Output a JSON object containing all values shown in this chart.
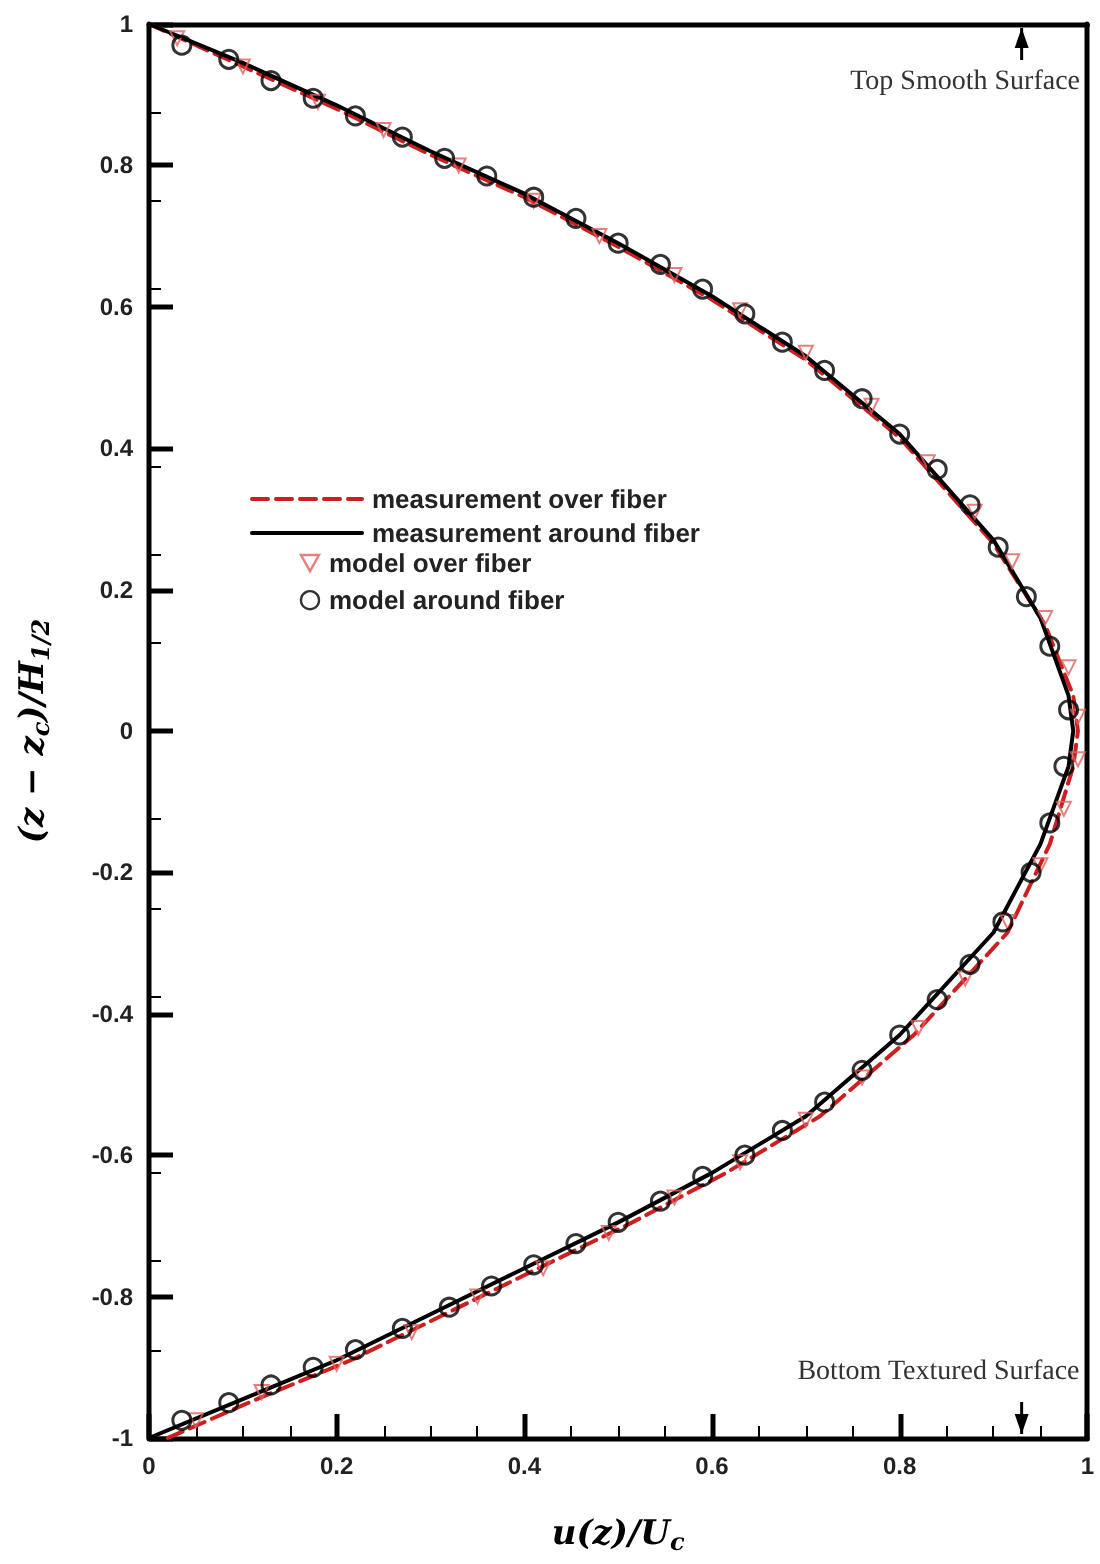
{
  "chart_data": {
    "type": "line",
    "xlabel": "u(z)/U$_{c}$",
    "ylabel": "(z − z$_{c}$)/H$_{1/2}$",
    "xlim": [
      0,
      1
    ],
    "xticks": [
      0,
      0.2,
      0.4,
      0.6,
      0.8,
      1
    ],
    "ylim": [
      -1,
      1
    ],
    "yticks": [
      -1,
      -0.8,
      -0.6,
      -0.4,
      -0.2,
      0,
      0.2,
      0.4,
      0.6,
      0.8,
      1
    ],
    "legend": "left",
    "annotations": [
      "Top Smooth Surface",
      "Bottom Textured Surface"
    ],
    "series": [
      {
        "name": "measurement over fiber",
        "type": "line",
        "line_style": "dashed",
        "color": "#cc2020",
        "x": [
          0,
          0.1,
          0.2,
          0.3,
          0.4,
          0.5,
          0.6,
          0.7,
          0.8,
          0.9,
          0.955,
          0.985,
          0.99,
          0.985,
          0.96,
          0.915,
          0.815,
          0.715,
          0.615,
          0.515,
          0.415,
          0.315,
          0.215,
          0.115,
          0.02
        ],
        "values": [
          1,
          0.94,
          0.88,
          0.815,
          0.755,
          0.685,
          0.61,
          0.525,
          0.415,
          0.265,
          0.15,
          0.05,
          0,
          -0.05,
          -0.16,
          -0.285,
          -0.43,
          -0.545,
          -0.625,
          -0.695,
          -0.76,
          -0.825,
          -0.89,
          -0.945,
          -1
        ]
      },
      {
        "name": "measurement around fiber",
        "type": "line",
        "line_style": "solid",
        "color": "#000000",
        "x": [
          0,
          0.1,
          0.2,
          0.3,
          0.4,
          0.5,
          0.6,
          0.7,
          0.8,
          0.9,
          0.95,
          0.98,
          0.985,
          0.98,
          0.95,
          0.9,
          0.8,
          0.7,
          0.6,
          0.5,
          0.4,
          0.3,
          0.2,
          0.1,
          0
        ],
        "values": [
          1,
          0.945,
          0.885,
          0.82,
          0.76,
          0.69,
          0.615,
          0.53,
          0.42,
          0.27,
          0.16,
          0.05,
          0,
          -0.05,
          -0.16,
          -0.285,
          -0.43,
          -0.545,
          -0.625,
          -0.695,
          -0.76,
          -0.825,
          -0.89,
          -0.945,
          -1
        ]
      },
      {
        "name": "model over fiber",
        "type": "scatter",
        "marker": "triangle",
        "color": "#e06060",
        "x": [
          0.03,
          0.1,
          0.18,
          0.25,
          0.33,
          0.41,
          0.48,
          0.56,
          0.63,
          0.7,
          0.77,
          0.83,
          0.88,
          0.92,
          0.955,
          0.98,
          0.99,
          0.99,
          0.975,
          0.95,
          0.915,
          0.87,
          0.82,
          0.76,
          0.7,
          0.63,
          0.56,
          0.49,
          0.42,
          0.35,
          0.28,
          0.2,
          0.12,
          0.05
        ],
        "values": [
          0.98,
          0.94,
          0.89,
          0.85,
          0.8,
          0.75,
          0.7,
          0.645,
          0.595,
          0.535,
          0.46,
          0.38,
          0.31,
          0.24,
          0.16,
          0.09,
          0.02,
          -0.04,
          -0.11,
          -0.19,
          -0.27,
          -0.35,
          -0.42,
          -0.49,
          -0.55,
          -0.61,
          -0.66,
          -0.71,
          -0.76,
          -0.8,
          -0.85,
          -0.895,
          -0.935,
          -0.975
        ]
      },
      {
        "name": "model around fiber",
        "type": "scatter",
        "marker": "circle",
        "color": "#000000",
        "x": [
          0.035,
          0.085,
          0.13,
          0.175,
          0.22,
          0.27,
          0.315,
          0.36,
          0.41,
          0.455,
          0.5,
          0.545,
          0.59,
          0.635,
          0.675,
          0.72,
          0.76,
          0.8,
          0.84,
          0.875,
          0.905,
          0.935,
          0.96,
          0.98,
          0.975,
          0.96,
          0.94,
          0.91,
          0.875,
          0.84,
          0.8,
          0.76,
          0.72,
          0.675,
          0.635,
          0.59,
          0.545,
          0.5,
          0.455,
          0.41,
          0.365,
          0.32,
          0.27,
          0.22,
          0.175,
          0.13,
          0.085,
          0.035
        ],
        "values": [
          0.97,
          0.95,
          0.92,
          0.895,
          0.87,
          0.84,
          0.81,
          0.785,
          0.755,
          0.725,
          0.69,
          0.66,
          0.625,
          0.59,
          0.55,
          0.51,
          0.47,
          0.42,
          0.37,
          0.32,
          0.26,
          0.19,
          0.12,
          0.03,
          -0.05,
          -0.13,
          -0.2,
          -0.27,
          -0.33,
          -0.38,
          -0.43,
          -0.48,
          -0.525,
          -0.565,
          -0.6,
          -0.63,
          -0.665,
          -0.695,
          -0.725,
          -0.755,
          -0.785,
          -0.815,
          -0.845,
          -0.875,
          -0.9,
          -0.925,
          -0.95,
          -0.975
        ]
      }
    ]
  }
}
